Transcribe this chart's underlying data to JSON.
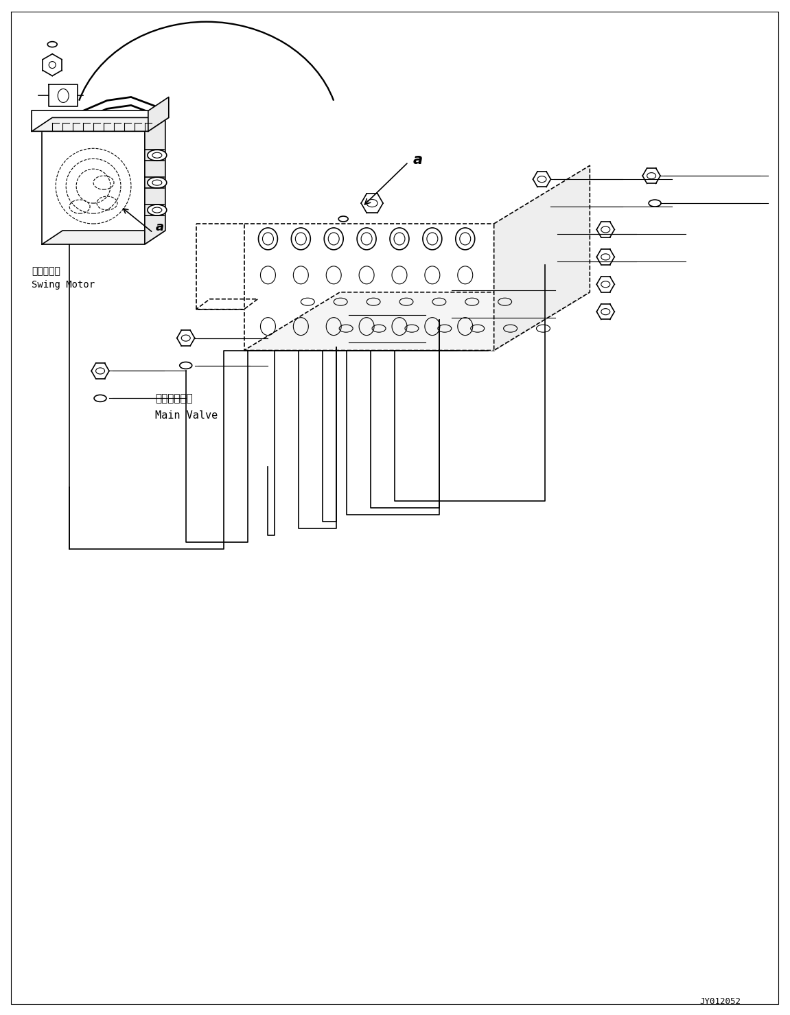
{
  "bg_color": "#ffffff",
  "line_color": "#000000",
  "fig_width": 11.51,
  "fig_height": 14.79,
  "dpi": 100,
  "watermark": "JY012052",
  "swing_motor_label_jp": "旋回モータ",
  "swing_motor_label_en": "Swing Motor",
  "main_valve_label_jp": "メインバルブ",
  "main_valve_label_en": "Main Valve",
  "label_a": "a"
}
